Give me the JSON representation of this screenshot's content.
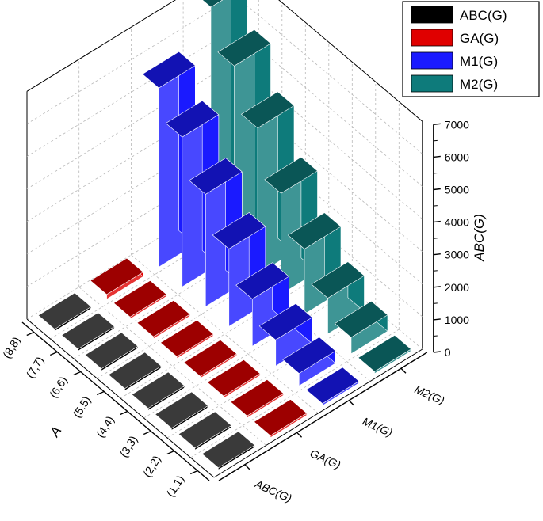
{
  "chart_data": {
    "type": "bar3d",
    "x_categories": [
      "(1,1)",
      "(2,2)",
      "(3,3)",
      "(4,4)",
      "(5,5)",
      "(6,6)",
      "(7,7)",
      "(8,8)"
    ],
    "y_categories": [
      "ABC(G)",
      "GA(G)",
      "M1(G)",
      "M2(G)"
    ],
    "series": [
      {
        "name": "ABC(G)",
        "color": "#000000",
        "values": [
          60,
          60,
          60,
          60,
          60,
          60,
          60,
          60
        ]
      },
      {
        "name": "GA(G)",
        "color": "#e00000",
        "values": [
          60,
          60,
          60,
          60,
          60,
          60,
          60,
          140
        ]
      },
      {
        "name": "M1(G)",
        "color": "#1a1aff",
        "values": [
          60,
          380,
          800,
          1450,
          2380,
          3450,
          4600,
          5500
        ]
      },
      {
        "name": "M2(G)",
        "color": "#0e7b7b",
        "values": [
          60,
          500,
          1100,
          2000,
          3100,
          4500,
          5800,
          7000
        ]
      }
    ],
    "xlabel": "A",
    "ylabel": "",
    "zlabel": "ABC(G)",
    "zlim": [
      0,
      7000
    ],
    "z_ticks": [
      "0",
      "1000",
      "2000",
      "3000",
      "4000",
      "5000",
      "6000",
      "7000"
    ],
    "legend_position": "top-right",
    "grid": true
  }
}
